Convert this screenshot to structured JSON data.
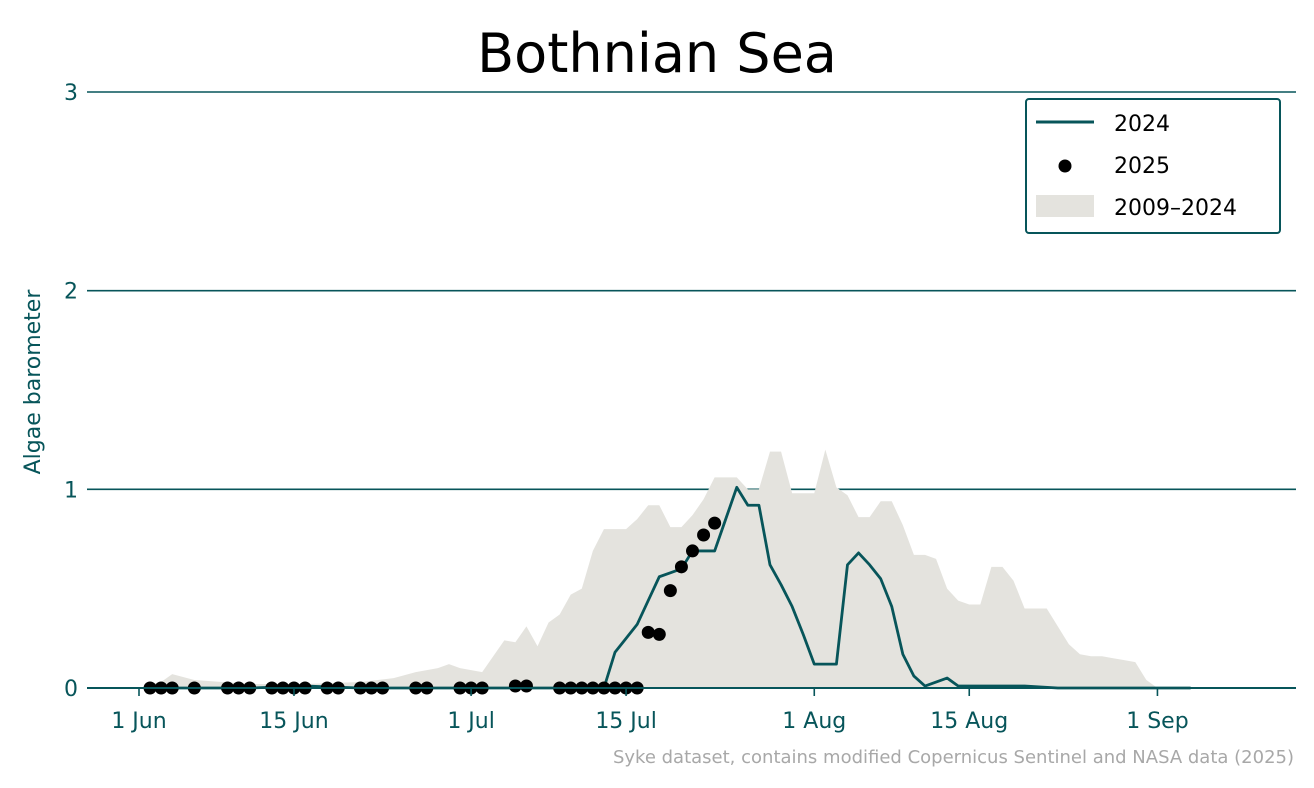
{
  "chart_data": {
    "type": "line",
    "title": "Bothnian Sea",
    "ylabel": "Algae barometer",
    "xlabel": "",
    "ylim": [
      0,
      3
    ],
    "y_ticks": [
      "0",
      "1",
      "2",
      "3"
    ],
    "x_ticks": [
      {
        "label": "1 Jun",
        "day": 0
      },
      {
        "label": "15 Jun",
        "day": 14
      },
      {
        "label": "1 Jul",
        "day": 30
      },
      {
        "label": "15 Jul",
        "day": 44
      },
      {
        "label": "1 Aug",
        "day": 61
      },
      {
        "label": "15 Aug",
        "day": 75
      },
      {
        "label": "1 Sep",
        "day": 92
      }
    ],
    "x_note": "day = days after 1 Jun",
    "grid": "horizontal",
    "legend_position": "top-right",
    "credit": "Syke dataset, contains modified Copernicus Sentinel and NASA data (2025)",
    "colors": {
      "line_2024": "#07555a",
      "points_2025": "#000000",
      "range_fill": "#e4e3de",
      "axis": "#07555a"
    },
    "series": [
      {
        "name": "2024",
        "style": "line",
        "x": [
          1,
          6,
          10,
          15,
          20,
          25,
          30,
          33,
          35,
          38,
          40,
          42,
          43,
          44,
          45,
          46,
          47,
          48,
          49,
          50,
          51,
          52,
          53,
          54,
          55,
          56,
          57,
          58,
          59,
          60,
          61,
          62,
          63,
          64,
          65,
          66,
          67,
          68,
          69,
          70,
          71,
          72,
          73,
          74,
          75,
          76,
          77,
          80,
          83,
          85,
          90,
          95
        ],
        "y": [
          0,
          0,
          0,
          0.01,
          0,
          0,
          0,
          0,
          0,
          0,
          0,
          0,
          0.18,
          0.25,
          0.32,
          0.44,
          0.56,
          0.58,
          0.6,
          0.69,
          0.69,
          0.69,
          0.85,
          1.01,
          0.92,
          0.92,
          0.62,
          0.52,
          0.41,
          0.27,
          0.12,
          0.12,
          0.12,
          0.62,
          0.68,
          0.62,
          0.55,
          0.41,
          0.17,
          0.06,
          0.01,
          0.03,
          0.05,
          0.01,
          0.01,
          0.01,
          0.01,
          0.01,
          0,
          0,
          0,
          0
        ]
      },
      {
        "name": "2025",
        "style": "points",
        "x": [
          1,
          2,
          3,
          5,
          8,
          9,
          10,
          12,
          13,
          14,
          15,
          17,
          18,
          20,
          21,
          22,
          25,
          26,
          29,
          30,
          31,
          34,
          35,
          38,
          39,
          40,
          41,
          42,
          43,
          44,
          45,
          46,
          47,
          48,
          49,
          50,
          51,
          52
        ],
        "y": [
          0,
          0,
          0,
          0,
          0,
          0,
          0,
          0,
          0,
          0,
          0,
          0,
          0,
          0,
          0,
          0,
          0,
          0,
          0,
          0,
          0,
          0.01,
          0.01,
          0,
          0,
          0,
          0,
          0,
          0,
          0,
          0,
          0.28,
          0.27,
          0.49,
          0.61,
          0.69,
          0.77,
          0.83
        ]
      },
      {
        "name": "2009–2024",
        "style": "area",
        "x": [
          1,
          2,
          3,
          5,
          10,
          15,
          20,
          23,
          25,
          27,
          28,
          29,
          30,
          31,
          33,
          34,
          35,
          36,
          37,
          38,
          39,
          40,
          41,
          42,
          43,
          44,
          45,
          46,
          47,
          48,
          49,
          50,
          51,
          52,
          53,
          54,
          55,
          56,
          57,
          58,
          59,
          60,
          61,
          62,
          63,
          64,
          65,
          66,
          67,
          68,
          69,
          70,
          71,
          72,
          73,
          74,
          75,
          76,
          77,
          78,
          79,
          80,
          81,
          82,
          83,
          84,
          85,
          86,
          87,
          88,
          89,
          90,
          91,
          92
        ],
        "y": [
          0.02,
          0.03,
          0.07,
          0.04,
          0.02,
          0.02,
          0.03,
          0.05,
          0.08,
          0.1,
          0.12,
          0.1,
          0.09,
          0.08,
          0.24,
          0.23,
          0.31,
          0.21,
          0.33,
          0.37,
          0.47,
          0.5,
          0.69,
          0.8,
          0.8,
          0.8,
          0.85,
          0.92,
          0.92,
          0.81,
          0.81,
          0.87,
          0.95,
          1.06,
          1.06,
          1.06,
          1.0,
          1.0,
          1.19,
          1.19,
          0.98,
          0.98,
          0.98,
          1.2,
          1.01,
          0.97,
          0.86,
          0.86,
          0.94,
          0.94,
          0.82,
          0.67,
          0.67,
          0.65,
          0.5,
          0.44,
          0.42,
          0.42,
          0.61,
          0.61,
          0.54,
          0.4,
          0.4,
          0.4,
          0.31,
          0.22,
          0.17,
          0.16,
          0.16,
          0.15,
          0.14,
          0.13,
          0.04,
          0.0
        ]
      }
    ]
  }
}
